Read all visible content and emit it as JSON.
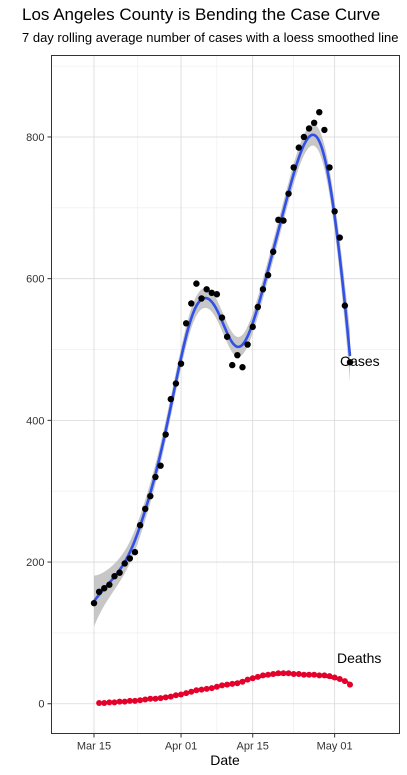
{
  "chart_data": {
    "type": "scatter",
    "title": "Los Angeles County is Bending the Case Curve",
    "subtitle": "7 day rolling average number of cases with a loess smoothed line",
    "xlabel": "Date",
    "ylabel": "",
    "x_ticks": [
      "Mar 15",
      "Apr 01",
      "Apr 15",
      "May 01"
    ],
    "y_ticks": [
      0,
      200,
      400,
      600,
      800
    ],
    "ylim": [
      -42,
      915
    ],
    "grid": true,
    "colors": {
      "cases_points": "#000000",
      "cases_line": "#3050e8",
      "confidence_band": "#bdbdbd",
      "deaths_points": "#e4002b",
      "deaths_line": "#c41e3a",
      "panel_border": "#333333",
      "grid": "#d9d9d9"
    },
    "series": [
      {
        "name": "Cases",
        "dates": [
          "2020-03-15",
          "2020-03-16",
          "2020-03-17",
          "2020-03-18",
          "2020-03-19",
          "2020-03-20",
          "2020-03-21",
          "2020-03-22",
          "2020-03-23",
          "2020-03-24",
          "2020-03-25",
          "2020-03-26",
          "2020-03-27",
          "2020-03-28",
          "2020-03-29",
          "2020-03-30",
          "2020-03-31",
          "2020-04-01",
          "2020-04-02",
          "2020-04-03",
          "2020-04-04",
          "2020-04-05",
          "2020-04-06",
          "2020-04-07",
          "2020-04-08",
          "2020-04-09",
          "2020-04-10",
          "2020-04-11",
          "2020-04-12",
          "2020-04-13",
          "2020-04-14",
          "2020-04-15",
          "2020-04-16",
          "2020-04-17",
          "2020-04-18",
          "2020-04-19",
          "2020-04-20",
          "2020-04-21",
          "2020-04-22",
          "2020-04-23",
          "2020-04-24",
          "2020-04-25",
          "2020-04-26",
          "2020-04-27",
          "2020-04-28",
          "2020-04-29",
          "2020-04-30",
          "2020-05-01",
          "2020-05-02",
          "2020-05-03",
          "2020-05-04"
        ],
        "values": [
          142,
          158,
          163,
          168,
          180,
          185,
          198,
          205,
          214,
          252,
          275,
          293,
          320,
          336,
          380,
          430,
          452,
          480,
          537,
          565,
          593,
          572,
          585,
          580,
          578,
          545,
          518,
          478,
          492,
          475,
          507,
          532,
          560,
          585,
          605,
          638,
          683,
          682,
          720,
          757,
          785,
          800,
          812,
          820,
          835,
          810,
          757,
          695,
          658,
          562,
          482
        ]
      },
      {
        "name": "Deaths",
        "dates": [
          "2020-03-16",
          "2020-03-17",
          "2020-03-18",
          "2020-03-19",
          "2020-03-20",
          "2020-03-21",
          "2020-03-22",
          "2020-03-23",
          "2020-03-24",
          "2020-03-25",
          "2020-03-26",
          "2020-03-27",
          "2020-03-28",
          "2020-03-29",
          "2020-03-30",
          "2020-03-31",
          "2020-04-01",
          "2020-04-02",
          "2020-04-03",
          "2020-04-04",
          "2020-04-05",
          "2020-04-06",
          "2020-04-07",
          "2020-04-08",
          "2020-04-09",
          "2020-04-10",
          "2020-04-11",
          "2020-04-12",
          "2020-04-13",
          "2020-04-14",
          "2020-04-15",
          "2020-04-16",
          "2020-04-17",
          "2020-04-18",
          "2020-04-19",
          "2020-04-20",
          "2020-04-21",
          "2020-04-22",
          "2020-04-23",
          "2020-04-24",
          "2020-04-25",
          "2020-04-26",
          "2020-04-27",
          "2020-04-28",
          "2020-04-29",
          "2020-04-30",
          "2020-05-01",
          "2020-05-02",
          "2020-05-03",
          "2020-05-04"
        ],
        "values": [
          1,
          1,
          2,
          2,
          3,
          3,
          4,
          4,
          5,
          6,
          7,
          7,
          8,
          9,
          10,
          12,
          13,
          15,
          17,
          19,
          20,
          21,
          22,
          24,
          26,
          27,
          28,
          29,
          31,
          34,
          36,
          38,
          40,
          41,
          42,
          43,
          43,
          43,
          42,
          42,
          41,
          41,
          41,
          40,
          40,
          39,
          37,
          35,
          32,
          27
        ]
      }
    ],
    "annotations": [
      "Cases",
      "Deaths"
    ]
  }
}
